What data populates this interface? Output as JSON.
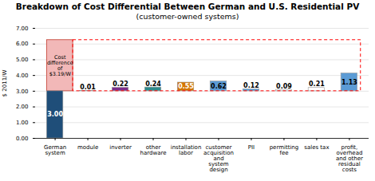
{
  "chart_data": {
    "type": "bar",
    "title": "Breakdown of Cost Differential Between German and U.S. Residential PV",
    "subtitle": "(customer-owned systems)",
    "ylabel": "$ 2011/W",
    "categories": [
      "German\nsystem",
      "module",
      "inverter",
      "other\nhardware",
      "installation\nlabor",
      "customer\nacquisition\nand\nsystem\ndesign",
      "PII",
      "permitting\nfee",
      "sales tax",
      "profit,\noverhead\nand other\nresidual\ncosts"
    ],
    "bottoms": [
      0.0,
      3.0,
      3.0,
      3.0,
      3.0,
      3.0,
      3.0,
      3.0,
      3.0,
      3.0
    ],
    "values": [
      3.0,
      0.01,
      0.22,
      0.24,
      0.55,
      0.62,
      0.12,
      0.09,
      0.21,
      1.13
    ],
    "value_labels": [
      "3.00",
      "0.01",
      "0.22",
      "0.24",
      "0.55",
      "0.62",
      "0.12",
      "0.09",
      "0.21",
      "1.13"
    ],
    "data_labels": true,
    "colors": [
      "#1f4e79",
      "#ffffff",
      "#7b2d8b",
      "#2e8b8b",
      "#d47500",
      "#5b9bd5",
      "#5b9bd5",
      "#ffffff",
      "#ffffff",
      "#5b9bd5"
    ],
    "ylim": [
      0,
      7.0
    ],
    "yticks": [
      {
        "value": 0.0,
        "label": "0.00"
      },
      {
        "value": 1.0,
        "label": "1.00"
      },
      {
        "value": 2.0,
        "label": "2.00"
      },
      {
        "value": 3.0,
        "label": "3.00"
      },
      {
        "value": 4.0,
        "label": "4.00"
      },
      {
        "value": 5.0,
        "label": "5.00"
      },
      {
        "value": 6.0,
        "label": "6.00"
      },
      {
        "value": 7.0,
        "label": "7.00"
      }
    ],
    "grid": true,
    "annotations": [
      {
        "text": "Cost\ndifference\nof\n$3.19/W",
        "range": [
          3.0,
          6.25
        ],
        "color": "#f2b8b8"
      }
    ]
  }
}
